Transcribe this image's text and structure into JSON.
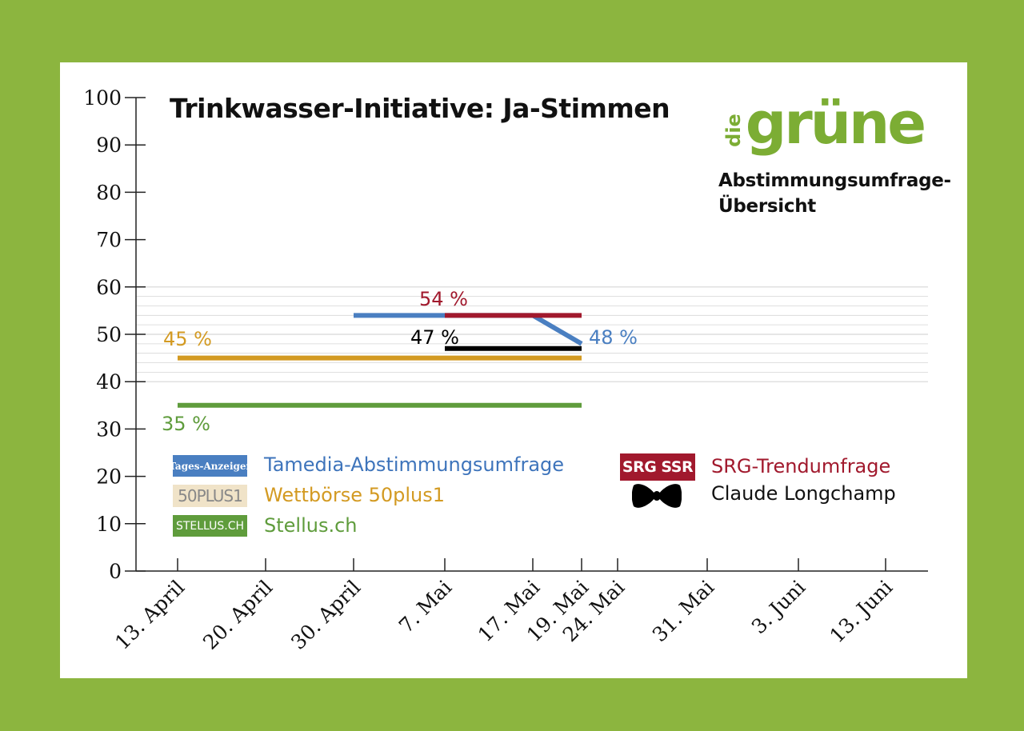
{
  "chart_data": {
    "type": "line",
    "title": "Trinkwasser-Initiative: Ja-Stimmen",
    "ylim": [
      0,
      100
    ],
    "yticks": [
      "0",
      "10",
      "20",
      "30",
      "40",
      "50",
      "60",
      "70",
      "80",
      "90",
      "100"
    ],
    "categories": [
      "13. April",
      "20. April",
      "30. April",
      "7. Mai",
      "17. Mai",
      "19. Mai",
      "24. Mai",
      "31. Mai",
      "3. Juni",
      "13. Juni"
    ],
    "grid": "horizontal lines between 40 and 60",
    "series": [
      {
        "name": "Tamedia-Abstimmungsumfrage",
        "color": "#4a7fc1",
        "points": [
          {
            "x": "30. April",
            "y": 54
          },
          {
            "x": "17. Mai",
            "y": 54
          },
          {
            "x": "19. Mai",
            "y": 48
          }
        ],
        "end_label": "48 %"
      },
      {
        "name": "SRG-Trendumfrage",
        "color": "#a1192d",
        "points": [
          {
            "x": "7. Mai",
            "y": 54
          },
          {
            "x": "19. Mai",
            "y": 54
          }
        ],
        "end_label": "54 %"
      },
      {
        "name": "Claude Longchamp",
        "color": "#000000",
        "points": [
          {
            "x": "7. Mai",
            "y": 47
          },
          {
            "x": "19. Mai",
            "y": 47
          }
        ],
        "end_label": "47 %"
      },
      {
        "name": "Wettbörse 50plus1",
        "color": "#d39a22",
        "points": [
          {
            "x": "13. April",
            "y": 45
          },
          {
            "x": "19. Mai",
            "y": 45
          }
        ],
        "end_label": "45 %"
      },
      {
        "name": "Stellus.ch",
        "color": "#5f9c3c",
        "points": [
          {
            "x": "13. April",
            "y": 35
          },
          {
            "x": "19. Mai",
            "y": 35
          }
        ],
        "end_label": "35 %"
      }
    ]
  },
  "header": {
    "title": "Trinkwasser-Initiative: Ja-Stimmen",
    "logo_die": "die",
    "logo_gruene": "grüne",
    "subtitle": "Abstimmungsumfrage-Übersicht"
  },
  "legend": {
    "tamedia_badge": "Tages-Anzeiger",
    "tamedia_label": "Tamedia-Abstimmungsumfrage",
    "fiftyplus_badge": "50PLUS1",
    "fiftyplus_label": "Wettbörse 50plus1",
    "stellus_badge": "STELLUS.CH",
    "stellus_label": "Stellus.ch",
    "srg_badge": "SRG SSR",
    "srg_label": "SRG-Trendumfrage",
    "longchamp_label": "Claude Longchamp",
    "longchamp_icon": "bowtie-icon"
  },
  "colors": {
    "background": "#8cb53f",
    "card": "#ffffff",
    "logo": "#7cad34"
  }
}
